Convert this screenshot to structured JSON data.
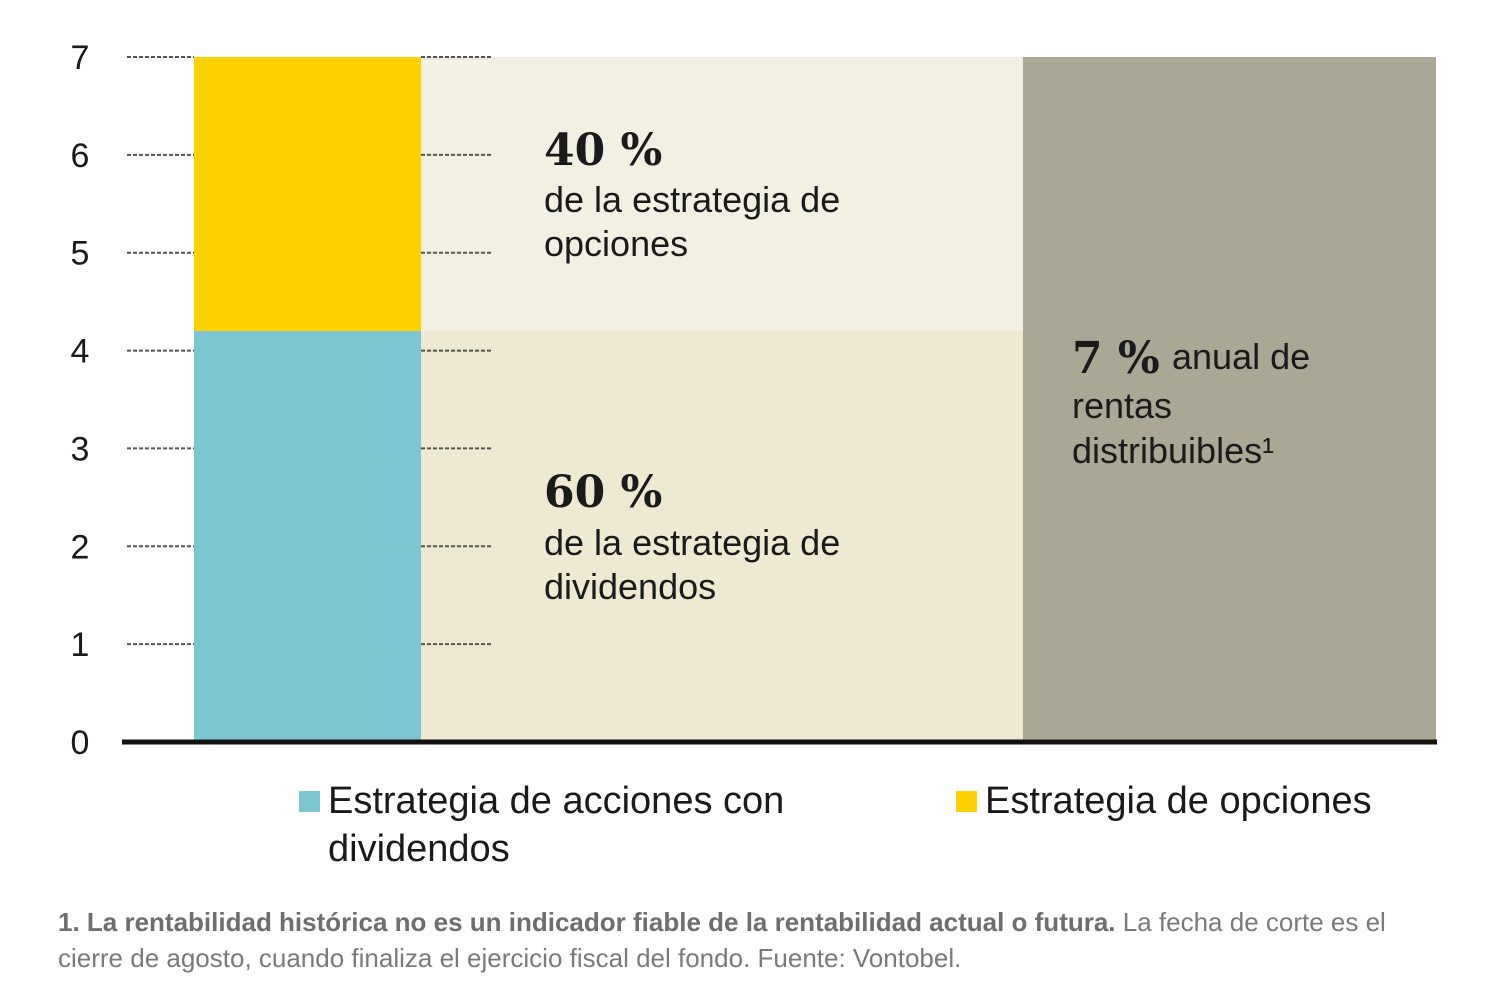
{
  "chart_data": {
    "type": "bar",
    "y_ticks": [
      0,
      1,
      2,
      3,
      4,
      5,
      6,
      7
    ],
    "ylim": [
      0,
      7
    ],
    "series": [
      {
        "name": "Estrategia de acciones con dividendos",
        "value": 4.2,
        "color": "#7CC5D3"
      },
      {
        "name": "Estrategia de opciones",
        "value": 2.8,
        "color": "#FFD100"
      }
    ],
    "total": 7,
    "annotations": {
      "options_share": {
        "pct": "40 %",
        "line1": "de la estrategia de",
        "line2": "opciones"
      },
      "dividends_share": {
        "pct": "60 %",
        "line1": "de la estrategia de",
        "line2": "dividendos"
      },
      "total": {
        "pct": "7 %",
        "rest": "anual de",
        "line2": "rentas",
        "line3": "distribuibles¹"
      }
    },
    "legend": [
      {
        "line1": "Estrategia de acciones con",
        "line2": "dividendos",
        "color": "#7CC5D3"
      },
      {
        "line1": "Estrategia de opciones",
        "line2": "",
        "color": "#FFD100"
      }
    ],
    "colors": {
      "options_band": "#F2F0E3",
      "dividends_band": "#EEE9D1",
      "total_block": "#AAA895",
      "axis": "#111111",
      "gridline": "#555555"
    }
  },
  "footnote": {
    "bold": "1. La rentabilidad histórica no es un indicador fiable de la rentabilidad actual o futura.",
    "normal": " La fecha de corte es el cierre de agosto, cuando finaliza el ejercicio fiscal del fondo. Fuente: Vontobel."
  }
}
